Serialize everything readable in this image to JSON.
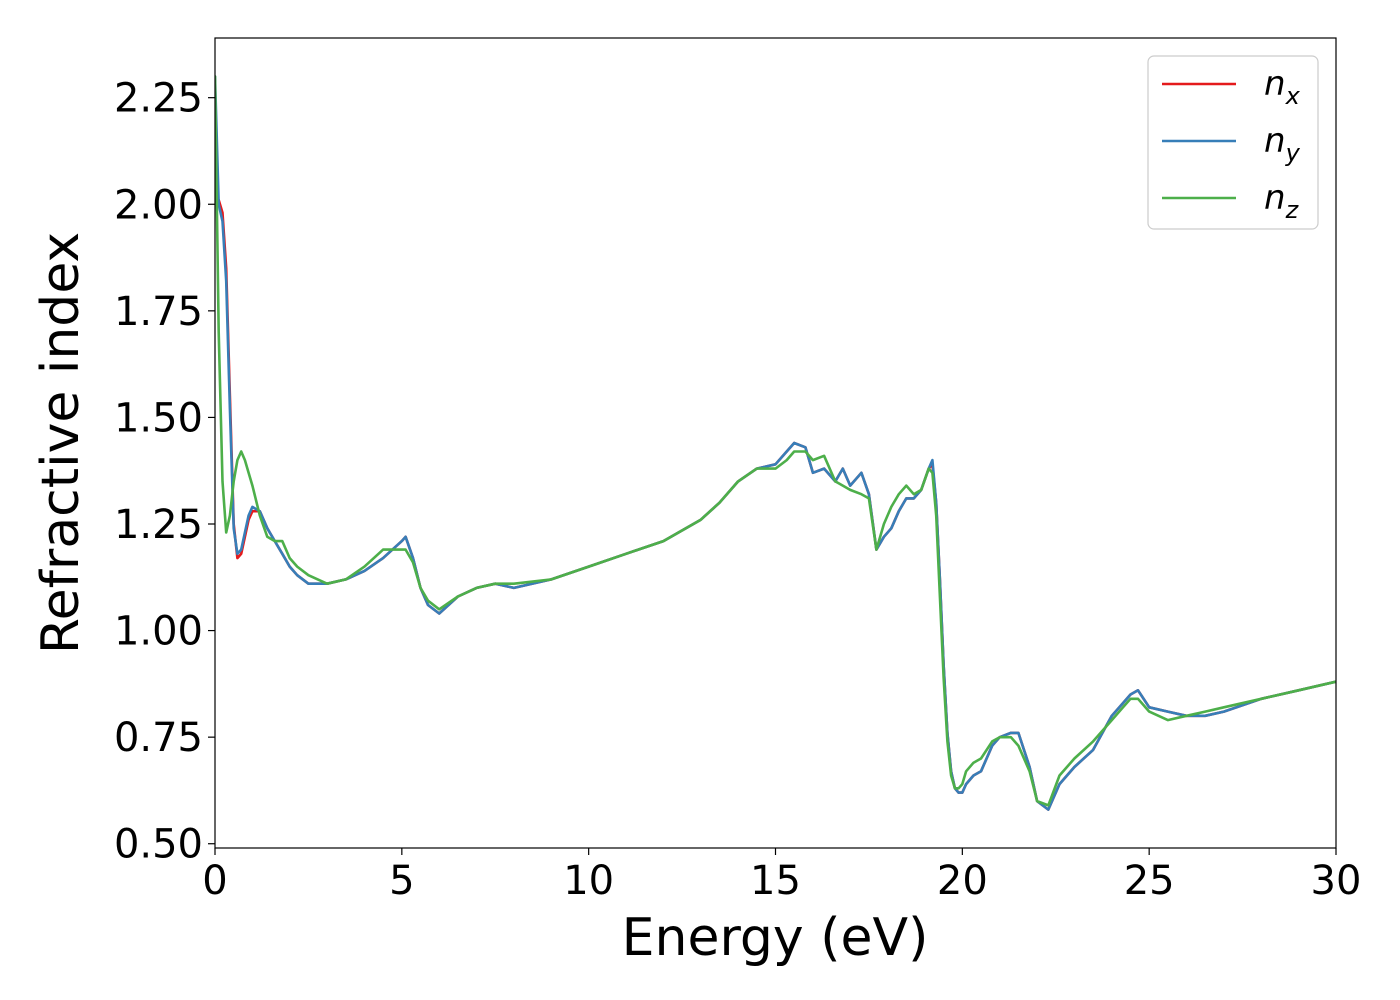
{
  "chart_data": {
    "type": "line",
    "xlabel": "Energy (eV)",
    "ylabel": "Refractive index",
    "xlim": [
      0,
      30
    ],
    "ylim": [
      0.49,
      2.39
    ],
    "xticks": [
      0,
      5,
      10,
      15,
      20,
      25,
      30
    ],
    "xtick_labels": [
      "0",
      "5",
      "10",
      "15",
      "20",
      "25",
      "30"
    ],
    "yticks": [
      0.5,
      0.75,
      1.0,
      1.25,
      1.5,
      1.75,
      2.0,
      2.25
    ],
    "ytick_labels": [
      "0.50",
      "0.75",
      "1.00",
      "1.25",
      "1.50",
      "1.75",
      "2.00",
      "2.25"
    ],
    "grid": false,
    "legend_position": "top-right",
    "series": [
      {
        "name": "n_x",
        "label_base": "n",
        "label_sub": "x",
        "color": "#e41a1c",
        "x": [
          0.0,
          0.1,
          0.2,
          0.3,
          0.4,
          0.5,
          0.6,
          0.7,
          0.8,
          0.9,
          1.0,
          1.2,
          1.4,
          1.6,
          1.8,
          2.0,
          2.2,
          2.5,
          3.0,
          3.5,
          4.0,
          4.5,
          5.0,
          5.1,
          5.3,
          5.5,
          5.7,
          6.0,
          6.5,
          7.0,
          7.5,
          8.0,
          9.0,
          10.0,
          11.0,
          12.0,
          13.0,
          13.5,
          14.0,
          14.5,
          15.0,
          15.3,
          15.5,
          15.8,
          16.0,
          16.3,
          16.6,
          16.8,
          17.0,
          17.3,
          17.5,
          17.7,
          17.9,
          18.1,
          18.3,
          18.5,
          18.7,
          18.9,
          19.1,
          19.2,
          19.3,
          19.4,
          19.5,
          19.6,
          19.7,
          19.8,
          19.9,
          20.0,
          20.1,
          20.3,
          20.5,
          20.8,
          21.0,
          21.3,
          21.5,
          21.8,
          22.0,
          22.3,
          22.6,
          23.0,
          23.5,
          24.0,
          24.3,
          24.5,
          24.7,
          25.0,
          25.5,
          26.0,
          26.5,
          27.0,
          28.0,
          29.0,
          30.0
        ],
        "y": [
          2.02,
          2.01,
          1.98,
          1.85,
          1.55,
          1.25,
          1.17,
          1.18,
          1.22,
          1.26,
          1.28,
          1.28,
          1.24,
          1.21,
          1.18,
          1.15,
          1.13,
          1.11,
          1.11,
          1.12,
          1.14,
          1.17,
          1.21,
          1.22,
          1.17,
          1.1,
          1.06,
          1.04,
          1.08,
          1.1,
          1.11,
          1.1,
          1.12,
          1.15,
          1.18,
          1.21,
          1.26,
          1.3,
          1.35,
          1.38,
          1.39,
          1.42,
          1.44,
          1.43,
          1.37,
          1.38,
          1.35,
          1.38,
          1.34,
          1.37,
          1.32,
          1.19,
          1.22,
          1.24,
          1.28,
          1.31,
          1.31,
          1.33,
          1.38,
          1.39,
          1.3,
          1.12,
          0.92,
          0.76,
          0.67,
          0.63,
          0.62,
          0.62,
          0.64,
          0.66,
          0.67,
          0.73,
          0.75,
          0.76,
          0.76,
          0.68,
          0.6,
          0.58,
          0.64,
          0.68,
          0.72,
          0.8,
          0.83,
          0.85,
          0.86,
          0.82,
          0.81,
          0.8,
          0.8,
          0.81,
          0.84,
          0.86,
          0.88
        ]
      },
      {
        "name": "n_y",
        "label_base": "n",
        "label_sub": "y",
        "color": "#377eb8",
        "x": [
          0.0,
          0.1,
          0.2,
          0.3,
          0.4,
          0.5,
          0.6,
          0.7,
          0.8,
          0.9,
          1.0,
          1.2,
          1.4,
          1.6,
          1.8,
          2.0,
          2.2,
          2.5,
          3.0,
          3.5,
          4.0,
          4.5,
          5.0,
          5.1,
          5.3,
          5.5,
          5.7,
          6.0,
          6.5,
          7.0,
          7.5,
          8.0,
          9.0,
          10.0,
          11.0,
          12.0,
          13.0,
          13.5,
          14.0,
          14.5,
          15.0,
          15.3,
          15.5,
          15.8,
          16.0,
          16.3,
          16.6,
          16.8,
          17.0,
          17.3,
          17.5,
          17.7,
          17.9,
          18.1,
          18.3,
          18.5,
          18.7,
          18.9,
          19.1,
          19.2,
          19.3,
          19.4,
          19.5,
          19.6,
          19.7,
          19.8,
          19.9,
          20.0,
          20.1,
          20.3,
          20.5,
          20.8,
          21.0,
          21.3,
          21.5,
          21.8,
          22.0,
          22.3,
          22.6,
          23.0,
          23.5,
          24.0,
          24.3,
          24.5,
          24.7,
          25.0,
          25.5,
          26.0,
          26.5,
          27.0,
          28.0,
          29.0,
          30.0
        ],
        "y": [
          2.3,
          2.0,
          1.96,
          1.82,
          1.52,
          1.24,
          1.18,
          1.19,
          1.23,
          1.27,
          1.29,
          1.28,
          1.24,
          1.21,
          1.18,
          1.15,
          1.13,
          1.11,
          1.11,
          1.12,
          1.14,
          1.17,
          1.21,
          1.22,
          1.17,
          1.1,
          1.06,
          1.04,
          1.08,
          1.1,
          1.11,
          1.1,
          1.12,
          1.15,
          1.18,
          1.21,
          1.26,
          1.3,
          1.35,
          1.38,
          1.39,
          1.42,
          1.44,
          1.43,
          1.37,
          1.38,
          1.35,
          1.38,
          1.34,
          1.37,
          1.32,
          1.19,
          1.22,
          1.24,
          1.28,
          1.31,
          1.31,
          1.33,
          1.38,
          1.4,
          1.3,
          1.12,
          0.92,
          0.76,
          0.67,
          0.63,
          0.62,
          0.62,
          0.64,
          0.66,
          0.67,
          0.73,
          0.75,
          0.76,
          0.76,
          0.68,
          0.6,
          0.58,
          0.64,
          0.68,
          0.72,
          0.8,
          0.83,
          0.85,
          0.86,
          0.82,
          0.81,
          0.8,
          0.8,
          0.81,
          0.84,
          0.86,
          0.88
        ]
      },
      {
        "name": "n_z",
        "label_base": "n",
        "label_sub": "z",
        "color": "#4daf4a",
        "x": [
          0.0,
          0.1,
          0.2,
          0.3,
          0.4,
          0.5,
          0.6,
          0.7,
          0.8,
          0.9,
          1.0,
          1.2,
          1.4,
          1.6,
          1.8,
          2.0,
          2.2,
          2.5,
          3.0,
          3.5,
          4.0,
          4.5,
          5.0,
          5.1,
          5.3,
          5.5,
          5.7,
          6.0,
          6.5,
          7.0,
          7.5,
          8.0,
          9.0,
          10.0,
          11.0,
          12.0,
          13.0,
          13.5,
          14.0,
          14.5,
          15.0,
          15.3,
          15.5,
          15.8,
          16.0,
          16.3,
          16.6,
          16.8,
          17.0,
          17.3,
          17.5,
          17.7,
          17.9,
          18.1,
          18.3,
          18.5,
          18.7,
          18.9,
          19.1,
          19.2,
          19.3,
          19.4,
          19.5,
          19.6,
          19.7,
          19.8,
          19.9,
          20.0,
          20.1,
          20.3,
          20.5,
          20.8,
          21.0,
          21.3,
          21.5,
          21.8,
          22.0,
          22.3,
          22.6,
          23.0,
          23.5,
          24.0,
          24.3,
          24.5,
          24.7,
          25.0,
          25.5,
          26.0,
          26.5,
          27.0,
          28.0,
          29.0,
          30.0
        ],
        "y": [
          2.3,
          1.7,
          1.35,
          1.23,
          1.27,
          1.35,
          1.4,
          1.42,
          1.4,
          1.37,
          1.34,
          1.27,
          1.22,
          1.21,
          1.21,
          1.17,
          1.15,
          1.13,
          1.11,
          1.12,
          1.15,
          1.19,
          1.19,
          1.19,
          1.16,
          1.1,
          1.07,
          1.05,
          1.08,
          1.1,
          1.11,
          1.11,
          1.12,
          1.15,
          1.18,
          1.21,
          1.26,
          1.3,
          1.35,
          1.38,
          1.38,
          1.4,
          1.42,
          1.42,
          1.4,
          1.41,
          1.35,
          1.34,
          1.33,
          1.32,
          1.31,
          1.19,
          1.25,
          1.29,
          1.32,
          1.34,
          1.32,
          1.33,
          1.38,
          1.37,
          1.27,
          1.08,
          0.89,
          0.74,
          0.66,
          0.63,
          0.63,
          0.64,
          0.67,
          0.69,
          0.7,
          0.74,
          0.75,
          0.75,
          0.73,
          0.67,
          0.6,
          0.59,
          0.66,
          0.7,
          0.74,
          0.79,
          0.82,
          0.84,
          0.84,
          0.81,
          0.79,
          0.8,
          0.81,
          0.82,
          0.84,
          0.86,
          0.88
        ]
      }
    ]
  }
}
